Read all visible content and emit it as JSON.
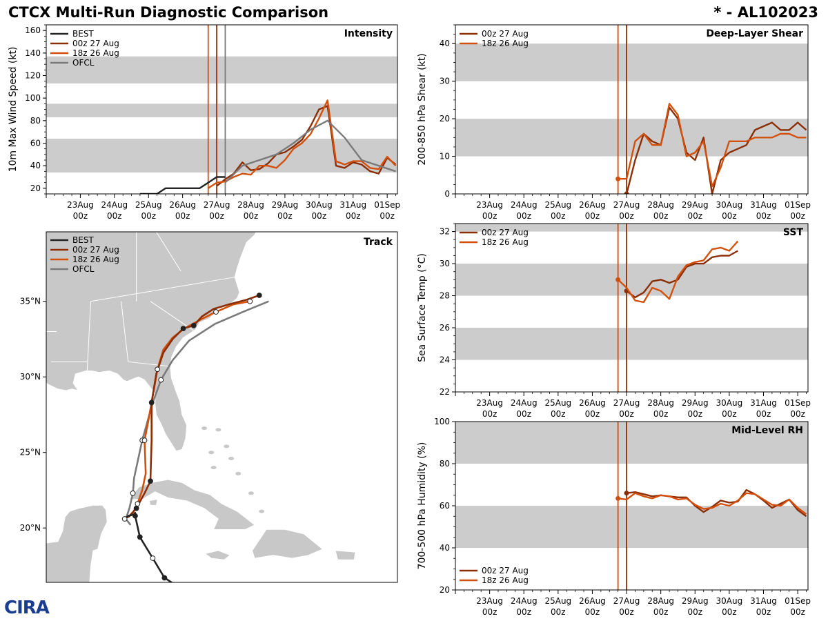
{
  "header": {
    "title": "CTCX Multi-Run Diagnostic Comparison",
    "storm": "* - AL102023"
  },
  "logo": {
    "text": "CIRA"
  },
  "colors": {
    "best": "#222222",
    "run00z": "#8B2E05",
    "run18z": "#D2500C",
    "ofcl": "#7A7A7A",
    "band": "#CCCCCC",
    "land": "#C8C8C8"
  },
  "time_axis": {
    "ticks": [
      {
        "d": 23,
        "top": "23Aug",
        "bottom": "00z"
      },
      {
        "d": 24,
        "top": "24Aug",
        "bottom": "00z"
      },
      {
        "d": 25,
        "top": "25Aug",
        "bottom": "00z"
      },
      {
        "d": 26,
        "top": "26Aug",
        "bottom": "00z"
      },
      {
        "d": 27,
        "top": "27Aug",
        "bottom": "00z"
      },
      {
        "d": 28,
        "top": "28Aug",
        "bottom": "00z"
      },
      {
        "d": 29,
        "top": "29Aug",
        "bottom": "00z"
      },
      {
        "d": 30,
        "top": "30Aug",
        "bottom": "00z"
      },
      {
        "d": 31,
        "top": "31Aug",
        "bottom": "00z"
      },
      {
        "d": 32,
        "top": "01Sep",
        "bottom": "00z"
      }
    ]
  },
  "chart_data": [
    {
      "id": "intensity",
      "type": "line",
      "title": "Intensity",
      "ylabel": "10m Max Wind Speed (kt)",
      "xlim": [
        22.0,
        32.3
      ],
      "ylim": [
        15,
        165
      ],
      "yticks": [
        20,
        40,
        60,
        80,
        100,
        120,
        140,
        160
      ],
      "bands": [
        [
          34,
          64
        ],
        [
          83,
          95
        ],
        [
          113,
          137
        ]
      ],
      "vlines": [
        {
          "x": 26.75,
          "series": "run18z"
        },
        {
          "x": 27.0,
          "series": "run00z"
        },
        {
          "x": 27.25,
          "series": "ofcl"
        }
      ],
      "legend": [
        "BEST",
        "00z 27 Aug",
        "18z 26 Aug",
        "OFCL"
      ],
      "series": [
        {
          "name": "BEST",
          "key": "best",
          "x": [
            24.75,
            25.25,
            25.5,
            26.0,
            26.5,
            26.75,
            27.0,
            27.25
          ],
          "y": [
            15,
            15,
            20,
            20,
            20,
            25,
            30,
            30
          ]
        },
        {
          "name": "00z 27 Aug",
          "key": "run00z",
          "x": [
            27.0,
            27.25,
            27.5,
            27.75,
            28.0,
            28.25,
            28.5,
            28.75,
            29.0,
            29.25,
            29.5,
            29.75,
            30.0,
            30.25,
            30.5,
            30.75,
            31.0,
            31.25,
            31.5,
            31.75,
            32.0,
            32.25
          ],
          "y": [
            22,
            28,
            33,
            43,
            36,
            37,
            42,
            50,
            52,
            57,
            63,
            75,
            90,
            93,
            40,
            38,
            43,
            41,
            35,
            33,
            47,
            41
          ]
        },
        {
          "name": "18z 26 Aug",
          "key": "run18z",
          "x": [
            26.75,
            27.0,
            27.25,
            27.5,
            27.75,
            28.0,
            28.25,
            28.5,
            28.75,
            29.0,
            29.25,
            29.5,
            29.75,
            30.0,
            30.25,
            30.5,
            30.75,
            31.0,
            31.25,
            31.5,
            31.75,
            32.0,
            32.25
          ],
          "y": [
            20,
            25,
            26,
            30,
            33,
            32,
            40,
            40,
            38,
            45,
            55,
            60,
            68,
            82,
            98,
            44,
            41,
            44,
            44,
            38,
            37,
            48,
            40
          ]
        },
        {
          "name": "OFCL",
          "key": "ofcl",
          "x": [
            27.25,
            27.75,
            28.25,
            28.75,
            29.25,
            29.75,
            30.25,
            30.75,
            31.25,
            31.75,
            32.25
          ],
          "y": [
            25,
            40,
            45,
            50,
            60,
            72,
            80,
            65,
            45,
            40,
            35
          ]
        }
      ]
    },
    {
      "id": "shear",
      "type": "line",
      "title": "Deep-Layer Shear",
      "ylabel": "200-850 hPa Shear (kt)",
      "xlim": [
        22.0,
        32.3
      ],
      "ylim": [
        0,
        45
      ],
      "yticks": [
        0,
        10,
        20,
        30,
        40
      ],
      "bands": [
        [
          10,
          20
        ],
        [
          30,
          40
        ]
      ],
      "vlines": [
        {
          "x": 26.75,
          "series": "run18z"
        },
        {
          "x": 27.0,
          "series": "run00z"
        }
      ],
      "legend": [
        "00z 27 Aug",
        "18z 26 Aug"
      ],
      "series": [
        {
          "name": "00z 27 Aug",
          "key": "run00z",
          "x": [
            27.0,
            27.25,
            27.5,
            27.75,
            28.0,
            28.25,
            28.5,
            28.75,
            29.0,
            29.25,
            29.5,
            29.75,
            30.0,
            30.25,
            30.5,
            30.75,
            31.0,
            31.25,
            31.5,
            31.75,
            32.0,
            32.25
          ],
          "y": [
            0,
            9,
            16,
            14,
            13,
            23,
            20,
            11,
            9,
            15,
            0,
            9,
            11,
            12,
            13,
            17,
            18,
            19,
            17,
            17,
            19,
            17
          ]
        },
        {
          "name": "18z 26 Aug",
          "key": "run18z",
          "x": [
            26.75,
            27.0,
            27.25,
            27.5,
            27.75,
            28.0,
            28.25,
            28.5,
            28.75,
            29.0,
            29.25,
            29.5,
            29.75,
            30.0,
            30.25,
            30.5,
            30.75,
            31.0,
            31.25,
            31.5,
            31.75,
            32.0,
            32.25
          ],
          "y": [
            4,
            4,
            14,
            16,
            13,
            13,
            24,
            21,
            10,
            11,
            14,
            2,
            7,
            14,
            14,
            14,
            15,
            15,
            15,
            16,
            16,
            15,
            15
          ]
        }
      ]
    },
    {
      "id": "sst",
      "type": "line",
      "title": "SST",
      "ylabel": "Sea Surface Temp (°C)",
      "xlim": [
        22.0,
        32.3
      ],
      "ylim": [
        22,
        32.5
      ],
      "yticks": [
        22,
        24,
        26,
        28,
        30,
        32
      ],
      "bands": [
        [
          24,
          26
        ],
        [
          28,
          30
        ],
        [
          32,
          33
        ]
      ],
      "vlines": [
        {
          "x": 26.75,
          "series": "run18z"
        },
        {
          "x": 27.0,
          "series": "run00z"
        }
      ],
      "legend": [
        "00z 27 Aug",
        "18z 26 Aug"
      ],
      "series": [
        {
          "name": "00z 27 Aug",
          "key": "run00z",
          "x": [
            27.0,
            27.25,
            27.5,
            27.75,
            28.0,
            28.25,
            28.5,
            28.75,
            29.0,
            29.25,
            29.5,
            29.75,
            30.0,
            30.25
          ],
          "y": [
            28.3,
            27.9,
            28.2,
            28.9,
            29.0,
            28.8,
            29.0,
            29.8,
            30.0,
            30.0,
            30.4,
            30.5,
            30.5,
            30.8
          ]
        },
        {
          "name": "18z 26 Aug",
          "key": "run18z",
          "x": [
            26.75,
            27.0,
            27.25,
            27.5,
            27.75,
            28.0,
            28.25,
            28.5,
            28.75,
            29.0,
            29.25,
            29.5,
            29.75,
            30.0,
            30.25
          ],
          "y": [
            29.0,
            28.5,
            27.7,
            27.6,
            28.5,
            28.3,
            27.8,
            29.2,
            29.9,
            30.1,
            30.2,
            30.9,
            31.0,
            30.8,
            31.4
          ]
        }
      ]
    },
    {
      "id": "rh",
      "type": "line",
      "title": "Mid-Level RH",
      "ylabel": "700-500 hPa Humidity (%)",
      "xlim": [
        22.0,
        32.3
      ],
      "ylim": [
        20,
        100
      ],
      "yticks": [
        20,
        40,
        60,
        80,
        100
      ],
      "bands": [
        [
          40,
          60
        ],
        [
          80,
          100
        ]
      ],
      "vlines": [
        {
          "x": 26.75,
          "series": "run18z"
        },
        {
          "x": 27.0,
          "series": "run00z"
        }
      ],
      "legend": [
        "00z 27 Aug",
        "18z 26 Aug"
      ],
      "series": [
        {
          "name": "00z 27 Aug",
          "key": "run00z",
          "x": [
            27.0,
            27.25,
            27.5,
            27.75,
            28.0,
            28.25,
            28.5,
            28.75,
            29.0,
            29.25,
            29.5,
            29.75,
            30.0,
            30.25,
            30.5,
            30.75,
            31.0,
            31.25,
            31.5,
            31.75,
            32.0,
            32.25
          ],
          "y": [
            66,
            66.5,
            65.5,
            64.5,
            65,
            64.5,
            64,
            64,
            60,
            57,
            59.5,
            62.5,
            61.5,
            62,
            67.5,
            65.5,
            62.5,
            59,
            61,
            63,
            58,
            55
          ]
        },
        {
          "name": "18z 26 Aug",
          "key": "run18z",
          "x": [
            26.75,
            27.0,
            27.25,
            27.5,
            27.75,
            28.0,
            28.25,
            28.5,
            28.75,
            29.0,
            29.25,
            29.5,
            29.75,
            30.0,
            30.25,
            30.5,
            30.75,
            31.0,
            31.25,
            31.5,
            31.75,
            32.0,
            32.25
          ],
          "y": [
            63.5,
            63,
            66,
            64.5,
            63.5,
            65,
            64.5,
            63,
            63.5,
            60.5,
            58.5,
            59,
            61,
            60,
            62.5,
            66,
            65.5,
            63,
            60.5,
            60,
            63,
            59,
            56
          ]
        }
      ]
    },
    {
      "id": "track",
      "type": "line",
      "title": "Track",
      "xlim": [
        -92,
        -62
      ],
      "ylim": [
        16.4,
        39.6
      ],
      "yticks": [
        {
          "v": 20,
          "label": "20°N"
        },
        {
          "v": 25,
          "label": "25°N"
        },
        {
          "v": 30,
          "label": "30°N"
        },
        {
          "v": 35,
          "label": "35°N"
        }
      ],
      "legend": [
        "BEST",
        "00z 27 Aug",
        "18z 26 Aug",
        "OFCL"
      ],
      "series": [
        {
          "name": "BEST",
          "key": "best",
          "lon": [
            -80.9,
            -81.9,
            -82.9,
            -84.0,
            -84.4,
            -84.4,
            -84.5,
            -85.0,
            -85.3
          ],
          "lat": [
            16.2,
            16.7,
            18.0,
            19.4,
            20.8,
            21.0,
            20.9,
            20.8,
            20.6
          ]
        },
        {
          "name": "00z 27 Aug",
          "key": "run00z",
          "lon": [
            -85.3,
            -84.9,
            -84.3,
            -83.6,
            -83.1,
            -83.0,
            -83.0,
            -83.0,
            -82.6,
            -82.0,
            -81.2,
            -80.3,
            -79.4,
            -78.7,
            -77.7,
            -76.4,
            -74.9,
            -73.8
          ],
          "lat": [
            20.6,
            20.8,
            21.3,
            22.3,
            23.1,
            25.8,
            27.0,
            28.3,
            30.2,
            31.6,
            32.5,
            33.2,
            33.4,
            34.0,
            34.5,
            34.8,
            35.1,
            35.4
          ],
          "markers": [
            {
              "i": 2,
              "fill": "#222"
            },
            {
              "i": 4,
              "fill": "#222"
            },
            {
              "i": 7,
              "fill": "#222"
            },
            {
              "i": 11,
              "fill": "#222"
            },
            {
              "i": 12,
              "fill": "#222"
            },
            {
              "i": 17,
              "fill": "#222"
            }
          ]
        },
        {
          "name": "18z 26 Aug",
          "key": "run18z",
          "lon": [
            -85.0,
            -84.6,
            -84.2,
            -83.8,
            -83.5,
            -83.6,
            -83.3,
            -83.0,
            -82.5,
            -82.0,
            -81.2,
            -80.2,
            -78.8,
            -77.5,
            -76.0,
            -74.6
          ],
          "lat": [
            20.7,
            21.0,
            21.6,
            22.5,
            23.6,
            25.8,
            27.0,
            28.3,
            30.5,
            31.8,
            32.6,
            33.2,
            33.8,
            34.3,
            34.8,
            35.0
          ],
          "markers": [
            {
              "i": 2,
              "fill": "#fff"
            },
            {
              "i": 5,
              "fill": "#fff"
            },
            {
              "i": 8,
              "fill": "#fff"
            },
            {
              "i": 13,
              "fill": "#fff"
            },
            {
              "i": 15,
              "fill": "#fff"
            }
          ]
        },
        {
          "name": "OFCL",
          "key": "ofcl",
          "lon": [
            -84.8,
            -85.2,
            -84.9,
            -84.6,
            -84.5,
            -83.8,
            -82.9,
            -82.2,
            -81.2,
            -79.8,
            -77.6,
            -75.2,
            -73.0
          ],
          "lat": [
            20.2,
            20.6,
            21.3,
            22.3,
            23.3,
            25.8,
            28.3,
            29.8,
            31.1,
            32.4,
            33.5,
            34.3,
            35.0
          ],
          "markers": [
            {
              "i": 3,
              "fill": "#fff"
            },
            {
              "i": 5,
              "fill": "#fff"
            },
            {
              "i": 7,
              "fill": "#fff"
            }
          ]
        }
      ]
    }
  ]
}
